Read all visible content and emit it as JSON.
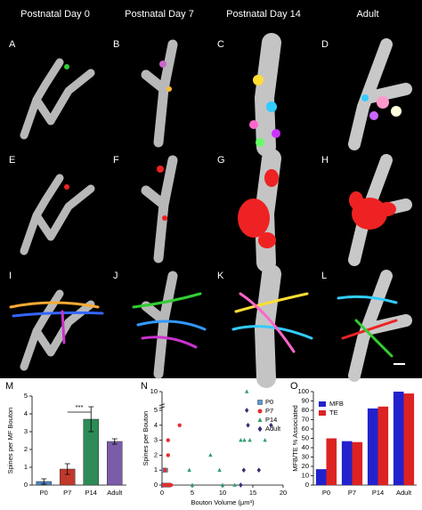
{
  "header": {
    "columns": [
      "Postnatal Day 0",
      "Postnatal Day 7",
      "Postnatal Day 14",
      "Adult"
    ]
  },
  "panels": [
    "A",
    "B",
    "C",
    "D",
    "E",
    "F",
    "G",
    "H",
    "I",
    "J",
    "K",
    "L"
  ],
  "chart_data": [
    {
      "type": "bar",
      "panel": "M",
      "ylabel": "Spines per MF Bouton",
      "categories": [
        "P0",
        "P7",
        "P14",
        "Adult"
      ],
      "values": [
        0.2,
        0.9,
        3.7,
        2.45
      ],
      "errors": [
        0.15,
        0.3,
        0.7,
        0.15
      ],
      "colors": [
        "#4f81bd",
        "#c0392b",
        "#2e8b57",
        "#7a5ca8"
      ],
      "ylim": [
        0,
        5
      ],
      "yticks": [
        0,
        1,
        2,
        3,
        4,
        5
      ],
      "annotation": "***"
    },
    {
      "type": "scatter",
      "panel": "N",
      "ylabel": "Spines per Bouton",
      "xlabel": "Bouton Volume (μm³)",
      "xlim": [
        0,
        20
      ],
      "xticks": [
        0,
        5,
        10,
        15,
        20
      ],
      "ylim": [
        0,
        10
      ],
      "yticks": [
        0,
        1,
        2,
        3,
        4,
        5,
        10
      ],
      "y_break": true,
      "series": [
        {
          "name": "P0",
          "color": "#5b9bd5",
          "marker": "square",
          "x": [
            0.2,
            0.4,
            0.5,
            0.7,
            0.9,
            1.1,
            0.3,
            0.6
          ],
          "values": [
            0,
            0,
            0,
            0,
            0,
            0,
            1,
            1
          ]
        },
        {
          "name": "P7",
          "color": "#e03030",
          "marker": "circle",
          "x": [
            0.3,
            0.6,
            0.9,
            1.2,
            0.5,
            1.0,
            2.9,
            1.5,
            1.0
          ],
          "values": [
            0,
            0,
            0,
            0,
            1,
            2,
            4,
            0,
            3
          ]
        },
        {
          "name": "P14",
          "color": "#2e9e6e",
          "marker": "triangle",
          "x": [
            4.5,
            5,
            8,
            10,
            12,
            13,
            13.6,
            14,
            14.5,
            17,
            9.5
          ],
          "values": [
            1,
            0,
            2,
            0,
            0,
            3,
            3,
            10,
            3,
            3,
            1
          ]
        },
        {
          "name": "Adult",
          "color": "#3b2a7a",
          "marker": "diamond",
          "x": [
            13,
            13.5,
            14,
            14.2,
            16,
            18
          ],
          "values": [
            0,
            1,
            5,
            4,
            1,
            4
          ]
        }
      ]
    },
    {
      "type": "grouped_bar",
      "panel": "O",
      "ylabel": "MFB/TE % Associated",
      "categories": [
        "P0",
        "P7",
        "P14",
        "Adult"
      ],
      "series": [
        {
          "name": "MFB",
          "color": "#2222cc",
          "values": [
            17,
            47,
            82,
            100
          ]
        },
        {
          "name": "TE",
          "color": "#dd2222",
          "values": [
            50,
            46,
            84,
            98
          ]
        }
      ],
      "ylim": [
        0,
        100
      ],
      "yticks": [
        0,
        10,
        20,
        30,
        40,
        50,
        60,
        70,
        80,
        90,
        100
      ],
      "legend": "top-left"
    }
  ]
}
